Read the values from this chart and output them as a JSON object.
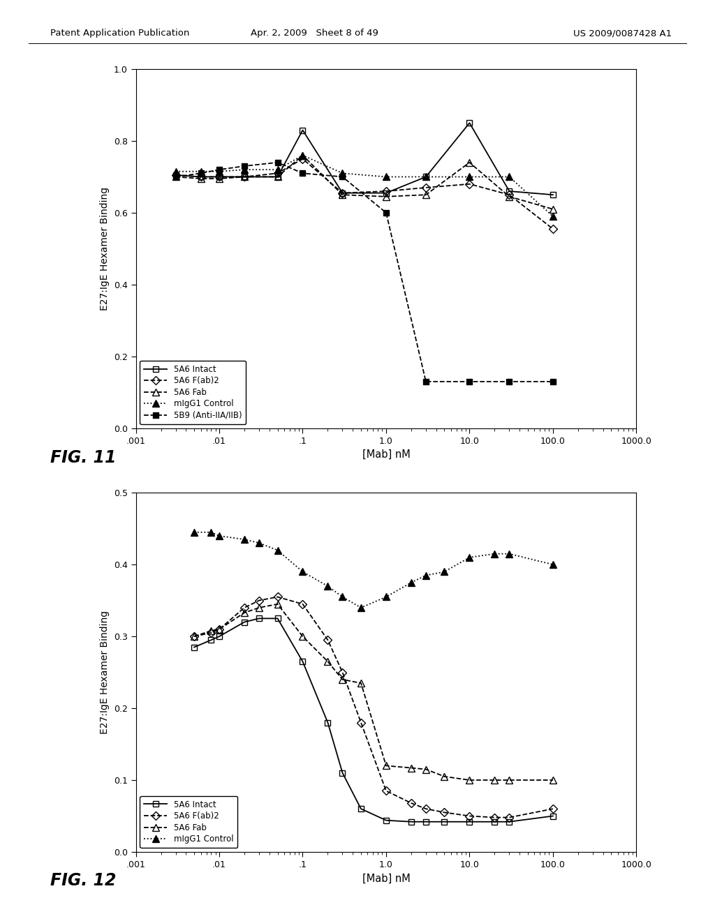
{
  "header_left": "Patent Application Publication",
  "header_mid": "Apr. 2, 2009   Sheet 8 of 49",
  "header_right": "US 2009/0087428 A1",
  "fig11": {
    "xlabel": "[Mab] nM",
    "ylabel": "E27:IgE Hexamer Binding",
    "xlim": [
      0.001,
      1000.0
    ],
    "ylim": [
      0.0,
      1.0
    ],
    "yticks": [
      0.0,
      0.2,
      0.4,
      0.6,
      0.8,
      1.0
    ],
    "xtick_labels": [
      ".001",
      ".01",
      ".1",
      "1.0",
      "10.0",
      "100.0",
      "1000.0"
    ],
    "xtick_vals": [
      0.001,
      0.01,
      0.1,
      1.0,
      10.0,
      100.0,
      1000.0
    ],
    "legend_loc": "lower center",
    "series": {
      "5A6 Intact": {
        "x": [
          0.003,
          0.006,
          0.01,
          0.02,
          0.05,
          0.1,
          0.3,
          1.0,
          3.0,
          10.0,
          30.0,
          100.0
        ],
        "y": [
          0.705,
          0.7,
          0.7,
          0.7,
          0.7,
          0.83,
          0.655,
          0.655,
          0.7,
          0.85,
          0.66,
          0.65
        ],
        "marker": "s",
        "fillstyle": "none",
        "linestyle": "-",
        "markersize": 6
      },
      "5A6 F(ab)2": {
        "x": [
          0.003,
          0.006,
          0.01,
          0.02,
          0.05,
          0.1,
          0.3,
          1.0,
          3.0,
          10.0,
          30.0,
          100.0
        ],
        "y": [
          0.705,
          0.7,
          0.7,
          0.7,
          0.71,
          0.75,
          0.655,
          0.66,
          0.67,
          0.68,
          0.65,
          0.555
        ],
        "marker": "D",
        "fillstyle": "none",
        "linestyle": "--",
        "markersize": 6
      },
      "5A6 Fab": {
        "x": [
          0.003,
          0.006,
          0.01,
          0.02,
          0.05,
          0.1,
          0.3,
          1.0,
          3.0,
          10.0,
          30.0,
          100.0
        ],
        "y": [
          0.7,
          0.695,
          0.695,
          0.7,
          0.7,
          0.76,
          0.65,
          0.645,
          0.65,
          0.74,
          0.645,
          0.61
        ],
        "marker": "^",
        "fillstyle": "none",
        "linestyle": "--",
        "markersize": 7
      },
      "mIgG1 Control": {
        "x": [
          0.003,
          0.006,
          0.01,
          0.02,
          0.05,
          0.1,
          0.3,
          1.0,
          3.0,
          10.0,
          30.0,
          100.0
        ],
        "y": [
          0.715,
          0.715,
          0.715,
          0.72,
          0.72,
          0.76,
          0.71,
          0.7,
          0.7,
          0.7,
          0.7,
          0.59
        ],
        "marker": "^",
        "fillstyle": "full",
        "linestyle": ":",
        "markersize": 7
      },
      "5B9 (Anti-IIA/IIB)": {
        "x": [
          0.003,
          0.006,
          0.01,
          0.02,
          0.05,
          0.1,
          0.3,
          1.0,
          3.0,
          10.0,
          30.0,
          100.0
        ],
        "y": [
          0.7,
          0.71,
          0.72,
          0.73,
          0.74,
          0.71,
          0.7,
          0.6,
          0.13,
          0.13,
          0.13,
          0.13
        ],
        "marker": "s",
        "fillstyle": "full",
        "linestyle": "--",
        "markersize": 6
      }
    }
  },
  "fig12": {
    "xlabel": "[Mab] nM",
    "ylabel": "E27:IgE Hexamer Binding",
    "xlim": [
      0.001,
      1000.0
    ],
    "ylim": [
      0.0,
      0.5
    ],
    "yticks": [
      0.0,
      0.1,
      0.2,
      0.3,
      0.4,
      0.5
    ],
    "xtick_labels": [
      ".001",
      ".01",
      ".1",
      "1.0",
      "10.0",
      "100.0",
      "1000.0"
    ],
    "xtick_vals": [
      0.001,
      0.01,
      0.1,
      1.0,
      10.0,
      100.0,
      1000.0
    ],
    "legend_loc": "lower left",
    "series": {
      "5A6 Intact": {
        "x": [
          0.005,
          0.008,
          0.01,
          0.02,
          0.03,
          0.05,
          0.1,
          0.2,
          0.3,
          0.5,
          1.0,
          2.0,
          3.0,
          5.0,
          10.0,
          20.0,
          30.0,
          100.0
        ],
        "y": [
          0.285,
          0.295,
          0.3,
          0.32,
          0.325,
          0.325,
          0.265,
          0.18,
          0.11,
          0.06,
          0.044,
          0.042,
          0.042,
          0.042,
          0.042,
          0.042,
          0.042,
          0.05
        ],
        "marker": "s",
        "fillstyle": "none",
        "linestyle": "-",
        "markersize": 6
      },
      "5A6 F(ab)2": {
        "x": [
          0.005,
          0.008,
          0.01,
          0.02,
          0.03,
          0.05,
          0.1,
          0.2,
          0.3,
          0.5,
          1.0,
          2.0,
          3.0,
          5.0,
          10.0,
          20.0,
          30.0,
          100.0
        ],
        "y": [
          0.3,
          0.305,
          0.31,
          0.34,
          0.35,
          0.355,
          0.345,
          0.295,
          0.25,
          0.18,
          0.085,
          0.068,
          0.06,
          0.055,
          0.05,
          0.048,
          0.048,
          0.06
        ],
        "marker": "D",
        "fillstyle": "none",
        "linestyle": "--",
        "markersize": 6
      },
      "5A6 Fab": {
        "x": [
          0.005,
          0.008,
          0.01,
          0.02,
          0.03,
          0.05,
          0.1,
          0.2,
          0.3,
          0.5,
          1.0,
          2.0,
          3.0,
          5.0,
          10.0,
          20.0,
          30.0,
          100.0
        ],
        "y": [
          0.3,
          0.308,
          0.31,
          0.333,
          0.34,
          0.345,
          0.3,
          0.265,
          0.24,
          0.235,
          0.12,
          0.117,
          0.115,
          0.105,
          0.1,
          0.1,
          0.1,
          0.1
        ],
        "marker": "^",
        "fillstyle": "none",
        "linestyle": "--",
        "markersize": 7
      },
      "mIgG1 Control": {
        "x": [
          0.005,
          0.008,
          0.01,
          0.02,
          0.03,
          0.05,
          0.1,
          0.2,
          0.3,
          0.5,
          1.0,
          2.0,
          3.0,
          5.0,
          10.0,
          20.0,
          30.0,
          100.0
        ],
        "y": [
          0.445,
          0.445,
          0.44,
          0.435,
          0.43,
          0.42,
          0.39,
          0.37,
          0.355,
          0.34,
          0.355,
          0.375,
          0.385,
          0.39,
          0.41,
          0.415,
          0.415,
          0.4
        ],
        "marker": "^",
        "fillstyle": "full",
        "linestyle": ":",
        "markersize": 7
      }
    }
  }
}
